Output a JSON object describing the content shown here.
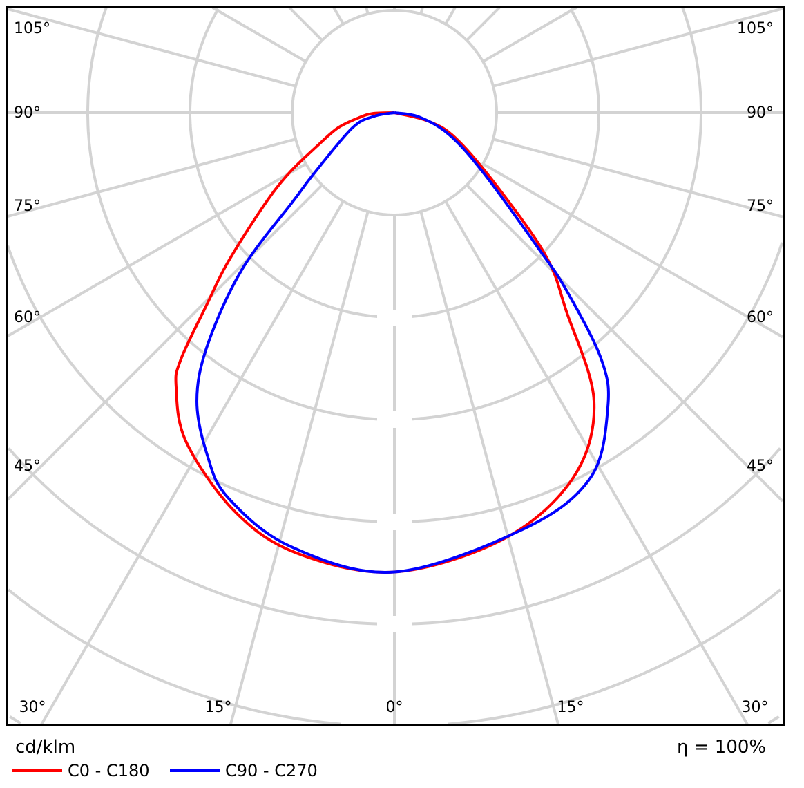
{
  "chart_data": {
    "type": "polar-line",
    "unit_label": "cd/klm",
    "efficiency_label": "η = 100%",
    "angle_labels_left": [
      "105°",
      "90°",
      "75°",
      "60°",
      "45°"
    ],
    "angle_labels_right": [
      "105°",
      "90°",
      "75°",
      "60°",
      "45°"
    ],
    "angle_labels_bottom": [
      "30°",
      "15°",
      "0°",
      "15°",
      "30°"
    ],
    "ring_count": 8,
    "spoke_step_deg": 15,
    "grid": true,
    "legend_position": "bottom-left",
    "series": [
      {
        "name": "C0 - C180",
        "color": "#ff0000",
        "points": [
          [
            -90,
            0
          ],
          [
            -88,
            0.21
          ],
          [
            -82,
            0.35
          ],
          [
            -75,
            0.57
          ],
          [
            -67,
            0.81
          ],
          [
            -60,
            1.2
          ],
          [
            -54.3,
            1.59
          ],
          [
            -48,
            2.2
          ],
          [
            -44.4,
            2.62
          ],
          [
            -40.9,
            3.19
          ],
          [
            -38.5,
            3.43
          ],
          [
            -32.3,
            3.81
          ],
          [
            -21.8,
            4.2
          ],
          [
            -12.5,
            4.41
          ],
          [
            0,
            4.49
          ],
          [
            14.5,
            4.3
          ],
          [
            26.2,
            3.97
          ],
          [
            34.7,
            3.43
          ],
          [
            40.9,
            2.57
          ],
          [
            46.6,
            2.04
          ],
          [
            54.3,
            1.24
          ],
          [
            67.4,
            0.65
          ],
          [
            76,
            0.34
          ],
          [
            90,
            0
          ]
        ]
      },
      {
        "name": "C90 - C270",
        "color": "#0000ff",
        "points": [
          [
            -90,
            0
          ],
          [
            -80,
            0.2
          ],
          [
            -70,
            0.44
          ],
          [
            -53,
            0.98
          ],
          [
            -49,
            1.3
          ],
          [
            -44.2,
            2.14
          ],
          [
            -38.8,
            2.92
          ],
          [
            -34.4,
            3.42
          ],
          [
            -28.6,
            3.82
          ],
          [
            -23.4,
            4.1
          ],
          [
            -13.5,
            4.36
          ],
          [
            0,
            4.49
          ],
          [
            17.4,
            4.26
          ],
          [
            28.3,
            4.05
          ],
          [
            35.9,
            3.56
          ],
          [
            40,
            3.15
          ],
          [
            44.1,
            2.42
          ],
          [
            46.7,
            1.94
          ],
          [
            56,
            1.05
          ],
          [
            68,
            0.58
          ],
          [
            80,
            0.25
          ],
          [
            90,
            0
          ]
        ]
      }
    ]
  }
}
